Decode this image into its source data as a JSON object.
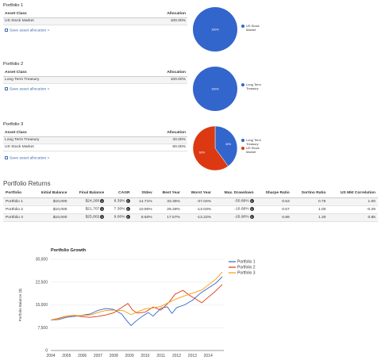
{
  "portfolios": [
    {
      "title": "Portfolio 1",
      "header": {
        "asset_class": "Asset Class",
        "allocation": "Allocation"
      },
      "rows": [
        {
          "asset": "US Stock Market",
          "allocation": "100.00%"
        }
      ],
      "save_link": "Save asset allocation »",
      "pie": {
        "slices": [
          {
            "label": "US Stock Market",
            "percent": 100,
            "display": "100%",
            "color": "#3366cc"
          }
        ]
      }
    },
    {
      "title": "Portfolio 2",
      "header": {
        "asset_class": "Asset Class",
        "allocation": "Allocation"
      },
      "rows": [
        {
          "asset": "Long Term Treasury",
          "allocation": "100.00%"
        }
      ],
      "save_link": "Save asset allocation »",
      "pie": {
        "slices": [
          {
            "label": "Long Term Treasury",
            "percent": 100,
            "display": "100%",
            "color": "#3366cc"
          }
        ]
      }
    },
    {
      "title": "Portfolio 3",
      "header": {
        "asset_class": "Asset Class",
        "allocation": "Allocation"
      },
      "rows": [
        {
          "asset": "Long Term Treasury",
          "allocation": "40.00%"
        },
        {
          "asset": "US Stock Market",
          "allocation": "60.00%"
        }
      ],
      "save_link": "Save asset allocation »",
      "pie": {
        "slices": [
          {
            "label": "Long Term Treasury",
            "percent": 40,
            "display": "40%",
            "color": "#3366cc"
          },
          {
            "label": "US Stock Market",
            "percent": 60,
            "display": "60%",
            "color": "#dc3912"
          }
        ]
      }
    }
  ],
  "returns": {
    "title": "Portfolio Returns",
    "columns": [
      "Portfolio",
      "Initial Balance",
      "Final Balance",
      "CAGR",
      "Stdev",
      "Best Year",
      "Worst Year",
      "Max. Drawdown",
      "Sharpe Ratio",
      "Sortino Ratio",
      "US Mkt Correlation"
    ],
    "rows": [
      [
        "Portfolio 1",
        "$10,000",
        "$24,260",
        "8.39%",
        "14.71%",
        "33.35%",
        "-37.04%",
        "-50.89%",
        "0.53",
        "0.75",
        "1.00"
      ],
      [
        "Portfolio 2",
        "$10,000",
        "$21,707",
        "7.30%",
        "10.90%",
        "29.28%",
        "-13.03%",
        "-16.68%",
        "0.57",
        "1.00",
        "-0.29"
      ],
      [
        "Portfolio 3",
        "$10,000",
        "$25,802",
        "9.00%",
        "8.50%",
        "17.57%",
        "-13.22%",
        "-26.90%",
        "0.89",
        "1.30",
        "0.85"
      ]
    ],
    "info_icon_columns": [
      2,
      3,
      7
    ],
    "info_icon": "info-circle-icon"
  },
  "chart_data": {
    "type": "line",
    "title": "Portfolio Growth",
    "xlabel": "",
    "ylabel": "Portfolio Balance ($)",
    "x_ticks": [
      "2004",
      "2005",
      "2006",
      "2007",
      "2008",
      "2009",
      "2010",
      "2011",
      "2012",
      "2013",
      "2014"
    ],
    "y_ticks": [
      "0",
      "7,500",
      "15,000",
      "22,500",
      "30,000"
    ],
    "xlim": [
      2004,
      2015
    ],
    "ylim": [
      0,
      30000
    ],
    "legend_position": "top-right",
    "grid": true,
    "series": [
      {
        "name": "Portfolio 1",
        "color": "#3366cc",
        "points": [
          [
            2004,
            10000
          ],
          [
            2004.5,
            10200
          ],
          [
            2005,
            10900
          ],
          [
            2005.5,
            11200
          ],
          [
            2006,
            11600
          ],
          [
            2006.5,
            12000
          ],
          [
            2007,
            13200
          ],
          [
            2007.5,
            13800
          ],
          [
            2008,
            13500
          ],
          [
            2008.5,
            12000
          ],
          [
            2008.8,
            10000
          ],
          [
            2009.1,
            8200
          ],
          [
            2009.4,
            9600
          ],
          [
            2009.8,
            11200
          ],
          [
            2010.2,
            12500
          ],
          [
            2010.5,
            11300
          ],
          [
            2011,
            13900
          ],
          [
            2011.4,
            14400
          ],
          [
            2011.7,
            12200
          ],
          [
            2012,
            14100
          ],
          [
            2012.5,
            15000
          ],
          [
            2013,
            16500
          ],
          [
            2013.5,
            18800
          ],
          [
            2014,
            20500
          ],
          [
            2014.5,
            22200
          ],
          [
            2014.9,
            24260
          ]
        ]
      },
      {
        "name": "Portfolio 2",
        "color": "#dc3912",
        "points": [
          [
            2004,
            10000
          ],
          [
            2004.5,
            10600
          ],
          [
            2005,
            11300
          ],
          [
            2005.5,
            11600
          ],
          [
            2006,
            11100
          ],
          [
            2006.5,
            10900
          ],
          [
            2007,
            11200
          ],
          [
            2007.5,
            11700
          ],
          [
            2008,
            12400
          ],
          [
            2008.9,
            15500
          ],
          [
            2009.2,
            13300
          ],
          [
            2009.5,
            12300
          ],
          [
            2010,
            12600
          ],
          [
            2010.5,
            14300
          ],
          [
            2011,
            13300
          ],
          [
            2011.5,
            15800
          ],
          [
            2011.9,
            18500
          ],
          [
            2012.4,
            19800
          ],
          [
            2012.8,
            18200
          ],
          [
            2013.2,
            17000
          ],
          [
            2013.6,
            15700
          ],
          [
            2014,
            17500
          ],
          [
            2014.4,
            19200
          ],
          [
            2014.9,
            21707
          ]
        ]
      },
      {
        "name": "Portfolio 3",
        "color": "#ff9900",
        "points": [
          [
            2004,
            10000
          ],
          [
            2004.5,
            10500
          ],
          [
            2005,
            11200
          ],
          [
            2005.5,
            11500
          ],
          [
            2006,
            11500
          ],
          [
            2006.5,
            11700
          ],
          [
            2007,
            12500
          ],
          [
            2007.5,
            13200
          ],
          [
            2008,
            13300
          ],
          [
            2008.6,
            13100
          ],
          [
            2009.1,
            11800
          ],
          [
            2009.5,
            12700
          ],
          [
            2010,
            13700
          ],
          [
            2010.5,
            14000
          ],
          [
            2011,
            14500
          ],
          [
            2011.5,
            15800
          ],
          [
            2011.9,
            16800
          ],
          [
            2012.4,
            17800
          ],
          [
            2012.8,
            18500
          ],
          [
            2013.2,
            19200
          ],
          [
            2013.6,
            19900
          ],
          [
            2014,
            21500
          ],
          [
            2014.5,
            23500
          ],
          [
            2014.9,
            25802
          ]
        ]
      }
    ]
  }
}
